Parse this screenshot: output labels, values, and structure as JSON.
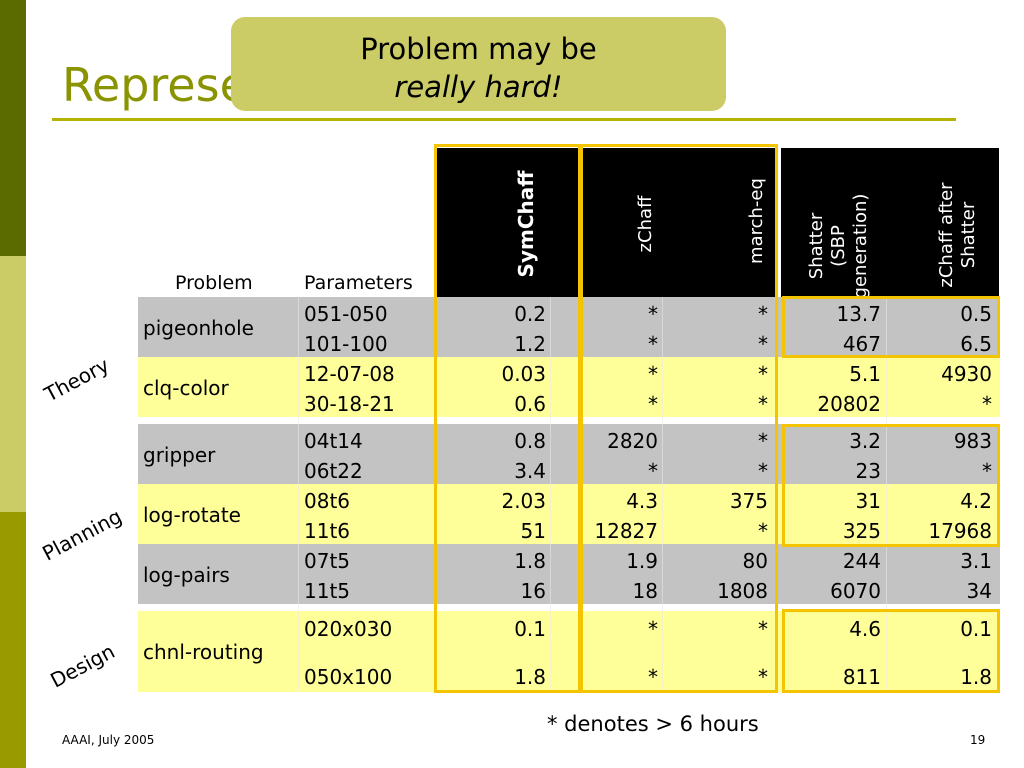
{
  "title": "Representing Samples",
  "callout": {
    "line1": "Problem may be",
    "line2": "really hard!"
  },
  "columns": {
    "problem": "Problem",
    "parameters": "Parameters",
    "symchaff": "SymChaff",
    "zchaff": "zChaff",
    "march": "march-eq",
    "shatter_l1": "Shatter",
    "shatter_l2": "(SBP",
    "shatter_l3": "generation)",
    "zshatter_l1": "zChaff after",
    "zshatter_l2": "Shatter"
  },
  "groups": {
    "theory": "Theory",
    "planning": "Planning",
    "design": "Design"
  },
  "problems": [
    "pigeonhole",
    "clq-color",
    "gripper",
    "log-rotate",
    "log-pairs",
    "chnl-routing"
  ],
  "rows": [
    {
      "params": "051-050",
      "sym": "0.2",
      "zchaff": "*",
      "march": "*",
      "shatter": "13.7",
      "zshatter": "0.5"
    },
    {
      "params": "101-100",
      "sym": "1.2",
      "zchaff": "*",
      "march": "*",
      "shatter": "467",
      "zshatter": "6.5"
    },
    {
      "params": "12-07-08",
      "sym": "0.03",
      "zchaff": "*",
      "march": "*",
      "shatter": "5.1",
      "zshatter": "4930"
    },
    {
      "params": "30-18-21",
      "sym": "0.6",
      "zchaff": "*",
      "march": "*",
      "shatter": "20802",
      "zshatter": "*"
    },
    {
      "params": "04t14",
      "sym": "0.8",
      "zchaff": "2820",
      "march": "*",
      "shatter": "3.2",
      "zshatter": "983"
    },
    {
      "params": "06t22",
      "sym": "3.4",
      "zchaff": "*",
      "march": "*",
      "shatter": "23",
      "zshatter": "*"
    },
    {
      "params": "08t6",
      "sym": "2.03",
      "zchaff": "4.3",
      "march": "375",
      "shatter": "31",
      "zshatter": "4.2"
    },
    {
      "params": "11t6",
      "sym": "51",
      "zchaff": "12827",
      "march": "*",
      "shatter": "325",
      "zshatter": "17968"
    },
    {
      "params": "07t5",
      "sym": "1.8",
      "zchaff": "1.9",
      "march": "80",
      "shatter": "244",
      "zshatter": "3.1"
    },
    {
      "params": "11t5",
      "sym": "16",
      "zchaff": "18",
      "march": "1808",
      "shatter": "6070",
      "zshatter": "34"
    },
    {
      "params": "020x030",
      "sym": "0.1",
      "zchaff": "*",
      "march": "*",
      "shatter": "4.6",
      "zshatter": "0.1"
    },
    {
      "params": "050x100",
      "sym": "1.8",
      "zchaff": "*",
      "march": "*",
      "shatter": "811",
      "zshatter": "1.8"
    }
  ],
  "note": "* denotes > 6 hours",
  "footer": {
    "left": "AAAI, July 2005",
    "page": "19"
  }
}
